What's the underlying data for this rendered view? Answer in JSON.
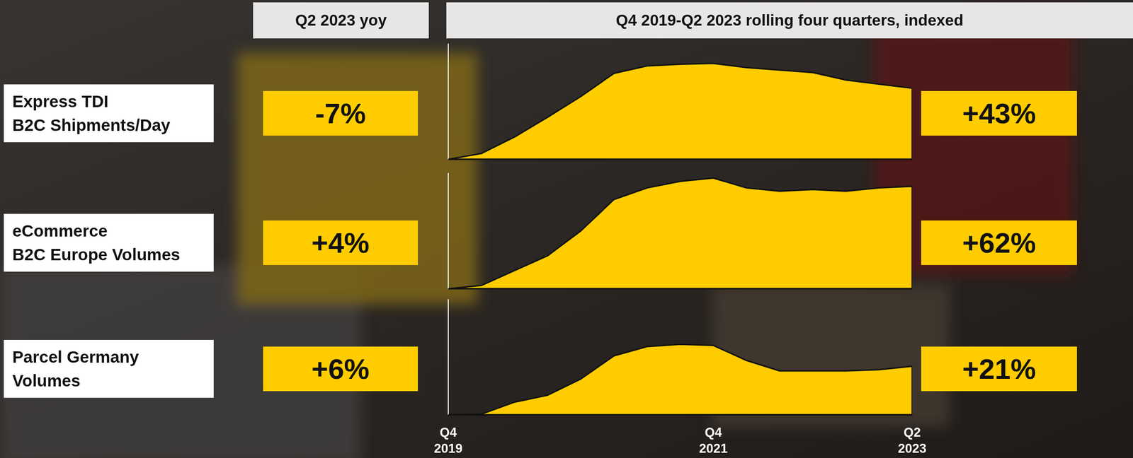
{
  "headers": {
    "yoy": "Q2 2023 yoy",
    "trend": "Q4 2019-Q2 2023 rolling four quarters, indexed"
  },
  "chart_data": [
    {
      "type": "area",
      "title": "Express TDI\nB2C Shipments/Day",
      "color": "#ffcc00",
      "categories": [
        "Q4 2019",
        null,
        null,
        null,
        null,
        null,
        null,
        null,
        "Q4 2021",
        null,
        null,
        null,
        null,
        null,
        "Q2 2023"
      ],
      "values": [
        100,
        103.5,
        113.5,
        125.5,
        138,
        152,
        156.5,
        157.5,
        158,
        155.5,
        154,
        152.5,
        148,
        145.5,
        143
      ],
      "ylim": [
        100,
        170
      ],
      "tick_labels": false,
      "yoy_change": -7,
      "yoy_label": "-7%",
      "cumulative_change": 43,
      "cumulative_label": "+43%"
    },
    {
      "type": "area",
      "title": "eCommerce\nB2C Europe Volumes",
      "color": "#ffcc00",
      "categories": [
        "Q4 2019",
        null,
        null,
        null,
        null,
        null,
        null,
        null,
        "Q4 2021",
        null,
        null,
        null,
        null,
        null,
        "Q2 2023"
      ],
      "values": [
        100,
        102,
        111,
        120,
        135,
        154,
        161,
        165,
        167,
        161,
        159,
        160,
        159,
        161,
        162
      ],
      "ylim": [
        100,
        170
      ],
      "tick_labels": false,
      "yoy_change": 4,
      "yoy_label": "+4%",
      "cumulative_change": 62,
      "cumulative_label": "+62%"
    },
    {
      "type": "area",
      "title": "Parcel Germany\nVolumes",
      "color": "#ffcc00",
      "categories": [
        "Q4 2019",
        null,
        null,
        null,
        null,
        null,
        null,
        null,
        "Q4 2021",
        null,
        null,
        null,
        null,
        null,
        "Q2 2023"
      ],
      "values": [
        100,
        100.3,
        105.5,
        108.5,
        115.5,
        125.5,
        129.5,
        130.5,
        130,
        123.5,
        119,
        119,
        119,
        119.5,
        121
      ],
      "ylim": [
        100,
        150
      ],
      "tick_labels": "x",
      "yoy_change": 6,
      "yoy_label": "+6%",
      "cumulative_change": 21,
      "cumulative_label": "+21%"
    }
  ]
}
